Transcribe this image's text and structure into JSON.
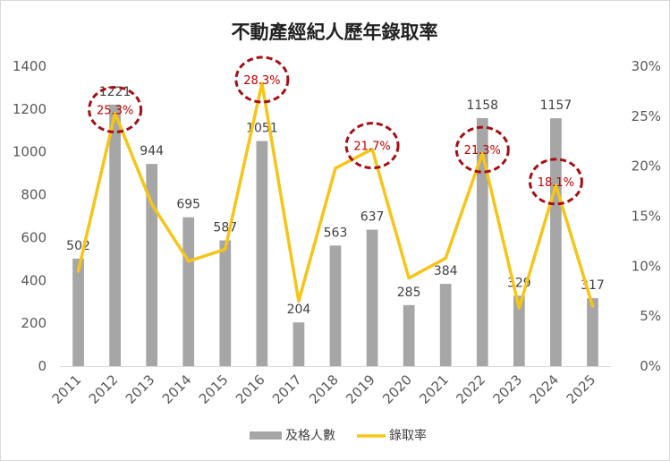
{
  "chart_data": {
    "type": "bar",
    "title": "不動產經紀人歷年錄取率",
    "categories": [
      "2011",
      "2012",
      "2013",
      "2014",
      "2015",
      "2016",
      "2017",
      "2018",
      "2019",
      "2020",
      "2021",
      "2022",
      "2023",
      "2024",
      "2025"
    ],
    "series": [
      {
        "name": "及格人數",
        "type": "bar",
        "axis": "left",
        "color": "#a6a6a6",
        "values": [
          502,
          1221,
          944,
          695,
          587,
          1051,
          204,
          563,
          637,
          285,
          384,
          1158,
          329,
          1157,
          317
        ]
      },
      {
        "name": "錄取率",
        "type": "line",
        "axis": "right",
        "color": "#f5c518",
        "values": [
          9.5,
          25.3,
          16.2,
          10.5,
          11.7,
          28.3,
          6.5,
          19.8,
          21.7,
          8.8,
          10.8,
          21.3,
          5.8,
          18.1,
          6.0
        ]
      }
    ],
    "highlighted_rates": [
      {
        "category": "2012",
        "label": "25.3%"
      },
      {
        "category": "2016",
        "label": "28.3%"
      },
      {
        "category": "2019",
        "label": "21.7%"
      },
      {
        "category": "2022",
        "label": "21.3%"
      },
      {
        "category": "2024",
        "label": "18.1%"
      }
    ],
    "y_left": {
      "min": 0,
      "max": 1400,
      "ticks": [
        "0",
        "200",
        "400",
        "600",
        "800",
        "1000",
        "1200",
        "1400"
      ]
    },
    "y_right": {
      "min": 0,
      "max": 30,
      "ticks": [
        "0%",
        "5%",
        "10%",
        "15%",
        "20%",
        "25%",
        "30%"
      ]
    },
    "grid": false,
    "legend": {
      "position": "bottom",
      "items": [
        "及格人數",
        "錄取率"
      ]
    },
    "highlight_color": "#a50f15",
    "axis_color": "#d9d9d9"
  }
}
